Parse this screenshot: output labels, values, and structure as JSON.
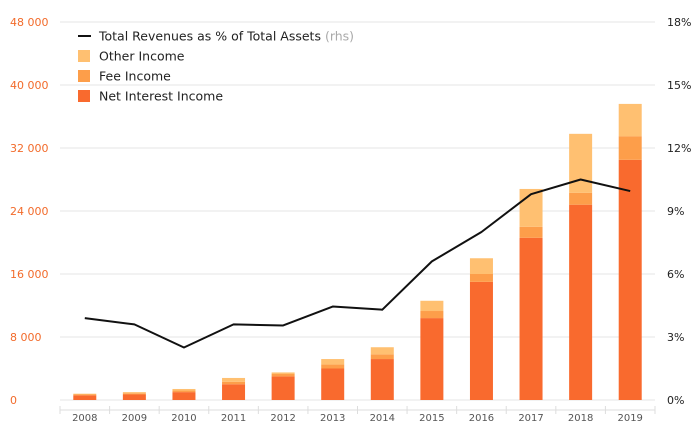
{
  "chart_data": {
    "type": "bar",
    "stacked": true,
    "categories": [
      "2008",
      "2009",
      "2010",
      "2011",
      "2012",
      "2013",
      "2014",
      "2015",
      "2016",
      "2017",
      "2018",
      "2019"
    ],
    "series": [
      {
        "name": "Net Interest Income",
        "color": "#f96a2e",
        "values": [
          600,
          700,
          1000,
          2000,
          3000,
          4000,
          5200,
          10400,
          15000,
          20600,
          24800,
          30500
        ]
      },
      {
        "name": "Fee Income",
        "color": "#fd9e4a",
        "values": [
          100,
          150,
          200,
          300,
          300,
          500,
          600,
          900,
          1000,
          1400,
          1500,
          3000
        ]
      },
      {
        "name": "Other Income",
        "color": "#ffc071",
        "values": [
          100,
          150,
          200,
          500,
          200,
          700,
          900,
          1300,
          2000,
          4800,
          7500,
          4100
        ]
      }
    ],
    "line": {
      "name": "Total Revenues as % of Total Assets",
      "suffix": "(rhs)",
      "color": "#111111",
      "values": [
        3.9,
        3.6,
        2.5,
        3.6,
        3.55,
        4.45,
        4.3,
        6.6,
        8.0,
        9.8,
        10.5,
        9.95
      ]
    },
    "y_left": {
      "min": 0,
      "max": 48000,
      "ticks": [
        "0",
        "8 000",
        "16 000",
        "24 000",
        "32 000",
        "40 000",
        "48 000"
      ],
      "tick_values": [
        0,
        8000,
        16000,
        24000,
        32000,
        40000,
        48000
      ]
    },
    "y_right": {
      "min": 0,
      "max": 18,
      "ticks": [
        "0%",
        "3%",
        "6%",
        "9%",
        "12%",
        "15%",
        "18%"
      ],
      "tick_values": [
        0,
        3,
        6,
        9,
        12,
        15,
        18
      ]
    },
    "grid": true,
    "legend_position": "top-left",
    "legend_order": [
      "line",
      "Other Income",
      "Fee Income",
      "Net Interest Income"
    ]
  }
}
